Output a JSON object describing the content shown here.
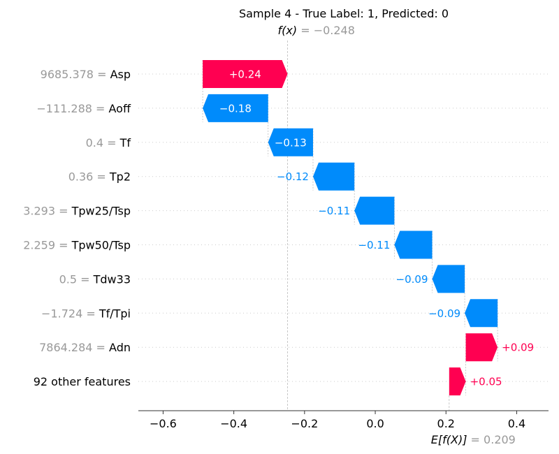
{
  "chart_data": {
    "type": "bar",
    "subtype": "shap-waterfall",
    "title": "Sample 4 - True Label: 1, Predicted: 0",
    "fx": {
      "label": "f(x)",
      "value": "−0.248",
      "x": -0.248
    },
    "base": {
      "label": "E[f(X)]",
      "value": "0.209",
      "x": 0.209
    },
    "xlim": [
      -0.67,
      0.49
    ],
    "xticks": [
      {
        "v": -0.6,
        "label": "−0.6"
      },
      {
        "v": -0.4,
        "label": "−0.4"
      },
      {
        "v": -0.2,
        "label": "−0.2"
      },
      {
        "v": 0.0,
        "label": "0.0"
      },
      {
        "v": 0.2,
        "label": "0.2"
      },
      {
        "v": 0.4,
        "label": "0.4"
      }
    ],
    "colors": {
      "positive": "#ff0051",
      "negative": "#008bfb",
      "muted": "#999999"
    },
    "features": [
      {
        "value": "9685.378",
        "name": "Asp",
        "start": -0.488,
        "end": -0.248,
        "label": "+0.24"
      },
      {
        "value": "−111.288",
        "name": "Aoff",
        "start": -0.303,
        "end": -0.488,
        "label": "−0.18"
      },
      {
        "value": "0.4",
        "name": "Tf",
        "start": -0.176,
        "end": -0.303,
        "label": "−0.13"
      },
      {
        "value": "0.36",
        "name": "Tp2",
        "start": -0.059,
        "end": -0.176,
        "label": "−0.12"
      },
      {
        "value": "3.293",
        "name": "Tpw25/Tsp",
        "start": 0.054,
        "end": -0.059,
        "label": "−0.11"
      },
      {
        "value": "2.259",
        "name": "Tpw50/Tsp",
        "start": 0.161,
        "end": 0.054,
        "label": "−0.11"
      },
      {
        "value": "0.5",
        "name": "Tdw33",
        "start": 0.253,
        "end": 0.161,
        "label": "−0.09"
      },
      {
        "value": "−1.724",
        "name": "Tf/Tpi",
        "start": 0.346,
        "end": 0.253,
        "label": "−0.09"
      },
      {
        "value": "7864.284",
        "name": "Adn",
        "start": 0.256,
        "end": 0.346,
        "label": "+0.09"
      },
      {
        "value": "",
        "name": "92 other features",
        "start": 0.209,
        "end": 0.256,
        "label": "+0.05"
      }
    ]
  }
}
